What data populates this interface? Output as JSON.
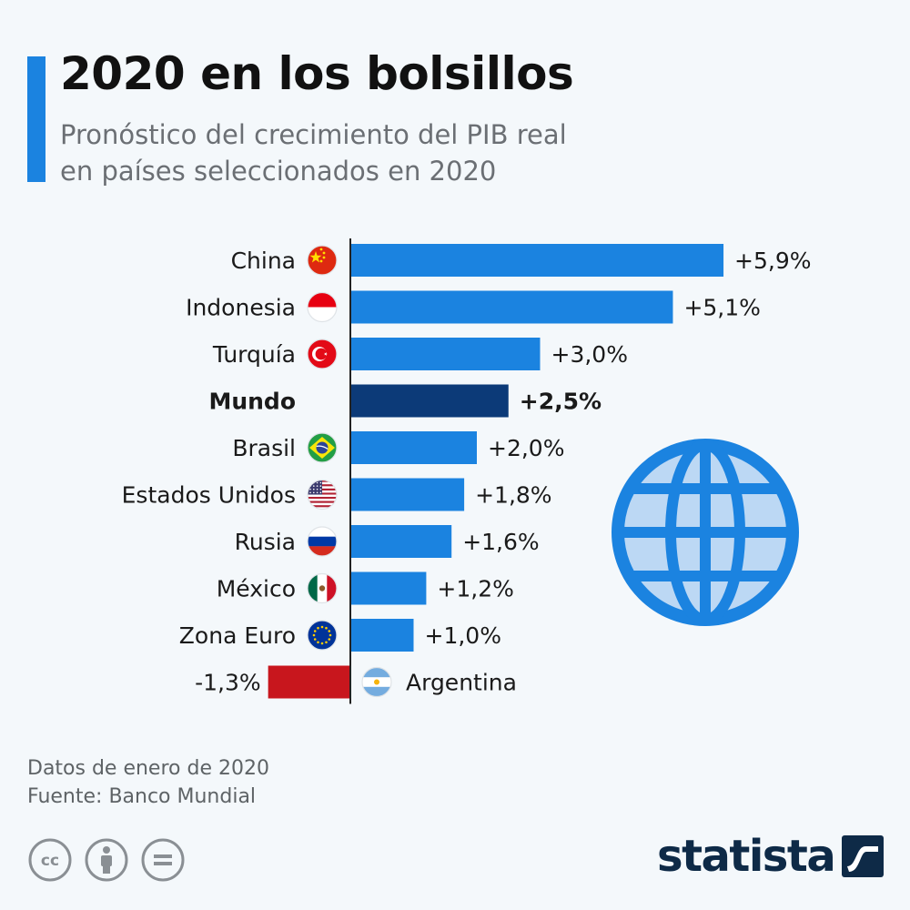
{
  "header": {
    "title": "2020 en los bolsillos",
    "subtitle_line1": "Pronóstico del crecimiento del PIB real",
    "subtitle_line2": "en países seleccionados en 2020"
  },
  "chart_data": {
    "type": "bar",
    "orientation": "horizontal",
    "title": "2020 en los bolsillos",
    "subtitle": "Pronóstico del crecimiento del PIB real en países seleccionados en 2020",
    "categories": [
      "China",
      "Indonesia",
      "Turquía",
      "Mundo",
      "Brasil",
      "Estados Unidos",
      "Rusia",
      "México",
      "Zona Euro",
      "Argentina"
    ],
    "values": [
      5.9,
      5.1,
      3.0,
      2.5,
      2.0,
      1.8,
      1.6,
      1.2,
      1.0,
      -1.3
    ],
    "value_labels": [
      "+5,9%",
      "+5,1%",
      "+3,0%",
      "+2,5%",
      "+2,0%",
      "+1,8%",
      "+1,6%",
      "+1,2%",
      "+1,0%",
      "-1,3%"
    ],
    "flags": [
      "china-flag-icon",
      "indonesia-flag-icon",
      "turkey-flag-icon",
      "",
      "brazil-flag-icon",
      "usa-flag-icon",
      "russia-flag-icon",
      "mexico-flag-icon",
      "eu-flag-icon",
      "argentina-flag-icon"
    ],
    "highlight": "Mundo",
    "colors": {
      "positive": "#1b83e0",
      "highlight": "#0c3a78",
      "negative": "#c8161d"
    },
    "xlim": [
      -1.3,
      5.9
    ],
    "grid": false
  },
  "footer": {
    "note": "Datos de enero de 2020",
    "source": "Fuente: Banco Mundial",
    "brand": "statista",
    "license_icons": [
      "cc-icon",
      "attribution-icon",
      "no-derivatives-icon"
    ]
  }
}
